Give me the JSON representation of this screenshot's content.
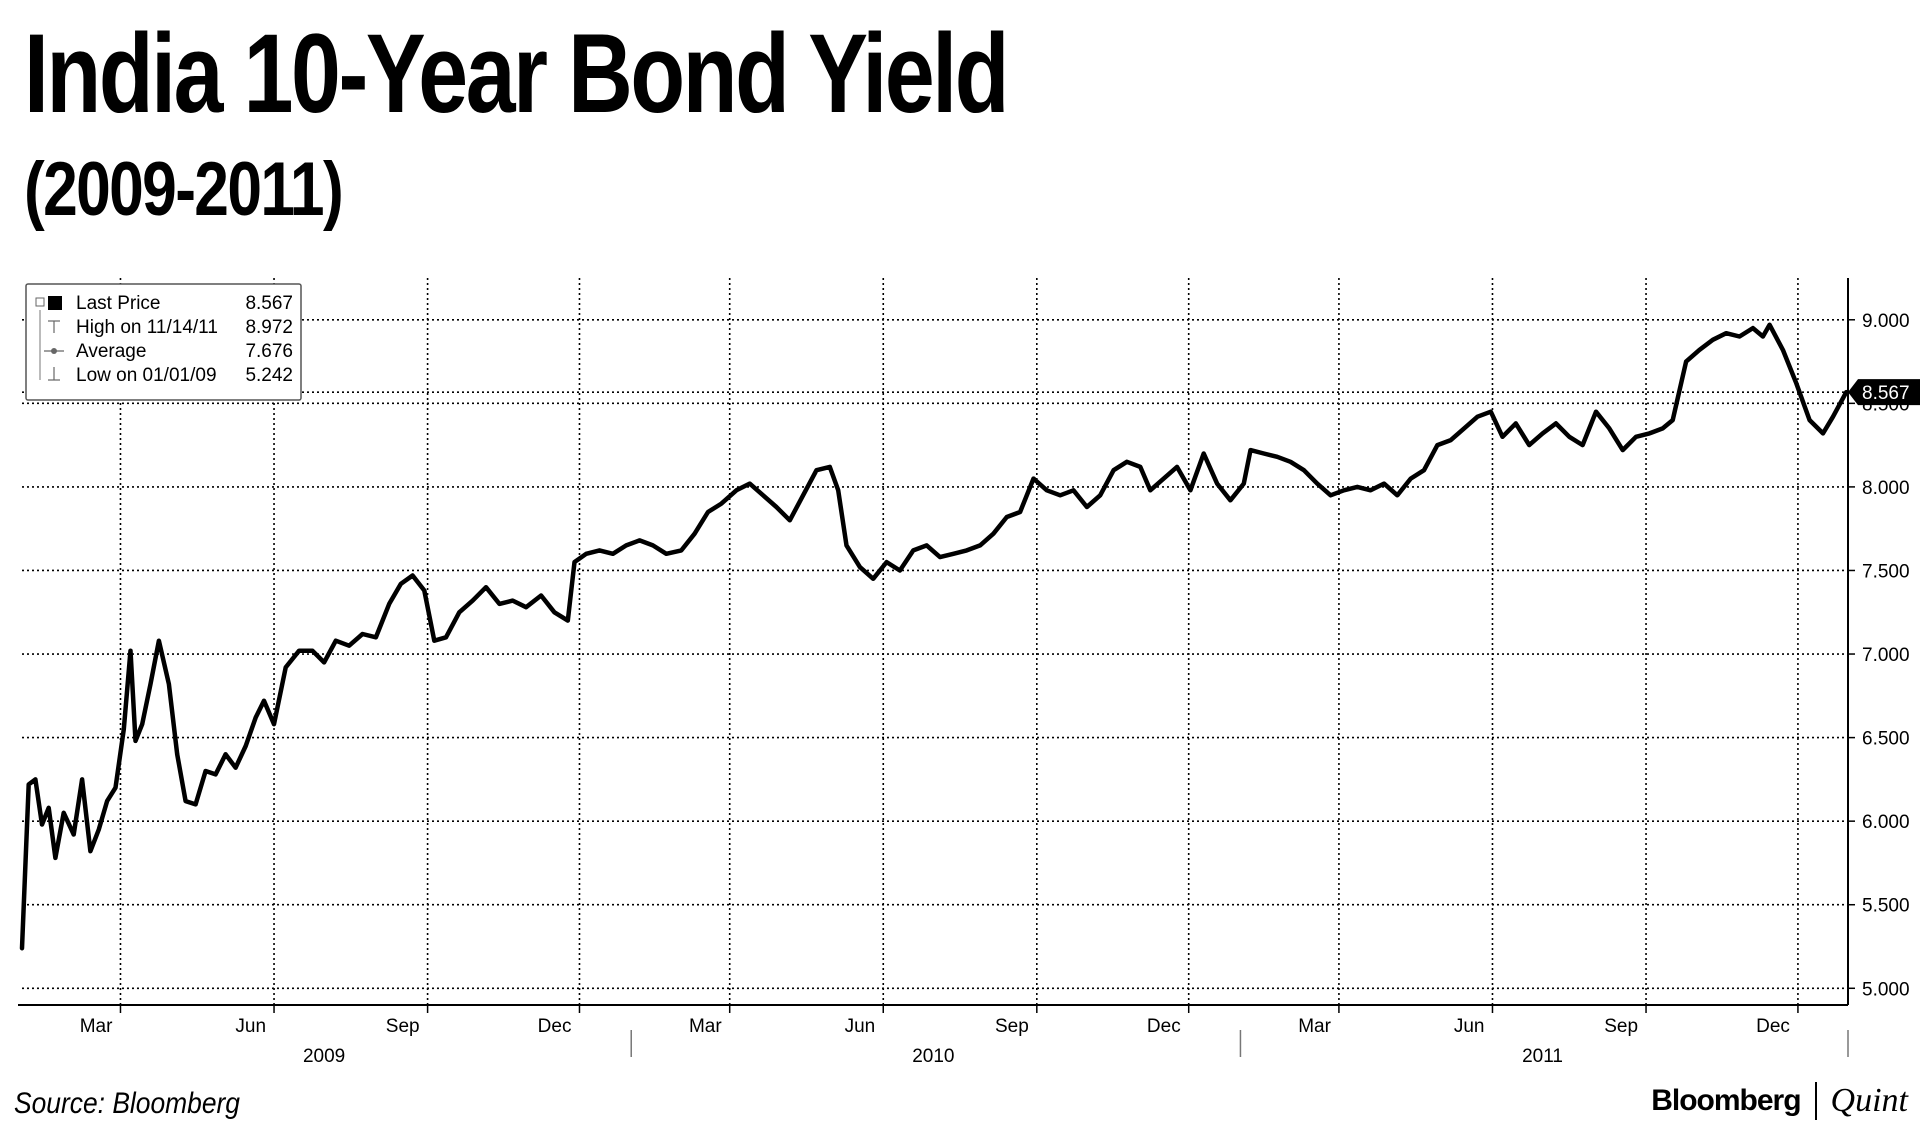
{
  "title": "India 10-Year Bond Yield",
  "subtitle": "(2009-2011)",
  "source": "Source: Bloomberg",
  "brand": {
    "left": "Bloomberg",
    "right": "Quint"
  },
  "colors": {
    "line": "#000000",
    "grid": "#000000",
    "background": "#ffffff",
    "last_price_tag": "#000000"
  },
  "chart_data": {
    "type": "line",
    "title": "India 10-Year Bond Yield",
    "subtitle": "(2009-2011)",
    "xlabel": "",
    "ylabel": "",
    "x_range": [
      "2009-01-01",
      "2011-12-31"
    ],
    "ylim": [
      4.9,
      9.25
    ],
    "y_ticks": [
      "5.000",
      "5.500",
      "6.000",
      "6.500",
      "7.000",
      "7.500",
      "8.000",
      "8.500",
      "9.000"
    ],
    "x_ticks": [
      {
        "label": "Mar",
        "date": "2009-03-01"
      },
      {
        "label": "Jun",
        "date": "2009-06-01"
      },
      {
        "label": "Sep",
        "date": "2009-09-01"
      },
      {
        "label": "Dec",
        "date": "2009-12-01"
      },
      {
        "label": "Mar",
        "date": "2010-03-01"
      },
      {
        "label": "Jun",
        "date": "2010-06-01"
      },
      {
        "label": "Sep",
        "date": "2010-09-01"
      },
      {
        "label": "Dec",
        "date": "2010-12-01"
      },
      {
        "label": "Mar",
        "date": "2011-03-01"
      },
      {
        "label": "Jun",
        "date": "2011-06-01"
      },
      {
        "label": "Sep",
        "date": "2011-09-01"
      },
      {
        "label": "Dec",
        "date": "2011-12-01"
      }
    ],
    "years": [
      {
        "label": "2009",
        "center": "2009-07-01"
      },
      {
        "label": "2010",
        "center": "2010-07-01"
      },
      {
        "label": "2011",
        "center": "2011-07-01"
      }
    ],
    "grid": true,
    "legend": {
      "placement": "top-left",
      "entries": [
        {
          "label": "Last Price",
          "value": "8.567"
        },
        {
          "label": "High on 11/14/11",
          "value": "8.972"
        },
        {
          "label": "Average",
          "value": "7.676"
        },
        {
          "label": "Low on 01/01/09",
          "value": "5.242"
        }
      ]
    },
    "last_price_tag": "8.567",
    "series": [
      {
        "values": [
          [
            "2009-01-01",
            5.24
          ],
          [
            "2009-01-05",
            6.22
          ],
          [
            "2009-01-09",
            6.25
          ],
          [
            "2009-01-13",
            5.98
          ],
          [
            "2009-01-17",
            6.08
          ],
          [
            "2009-01-21",
            5.78
          ],
          [
            "2009-01-26",
            6.05
          ],
          [
            "2009-02-01",
            5.92
          ],
          [
            "2009-02-06",
            6.25
          ],
          [
            "2009-02-11",
            5.82
          ],
          [
            "2009-02-16",
            5.95
          ],
          [
            "2009-02-21",
            6.12
          ],
          [
            "2009-02-26",
            6.2
          ],
          [
            "2009-03-03",
            6.55
          ],
          [
            "2009-03-07",
            7.02
          ],
          [
            "2009-03-10",
            6.48
          ],
          [
            "2009-03-14",
            6.58
          ],
          [
            "2009-03-19",
            6.82
          ],
          [
            "2009-03-24",
            7.08
          ],
          [
            "2009-03-30",
            6.82
          ],
          [
            "2009-04-04",
            6.4
          ],
          [
            "2009-04-09",
            6.12
          ],
          [
            "2009-04-15",
            6.1
          ],
          [
            "2009-04-21",
            6.3
          ],
          [
            "2009-04-27",
            6.28
          ],
          [
            "2009-05-03",
            6.4
          ],
          [
            "2009-05-09",
            6.32
          ],
          [
            "2009-05-15",
            6.45
          ],
          [
            "2009-05-21",
            6.62
          ],
          [
            "2009-05-26",
            6.72
          ],
          [
            "2009-06-01",
            6.58
          ],
          [
            "2009-06-08",
            6.92
          ],
          [
            "2009-06-16",
            7.02
          ],
          [
            "2009-06-24",
            7.02
          ],
          [
            "2009-07-01",
            6.95
          ],
          [
            "2009-07-08",
            7.08
          ],
          [
            "2009-07-16",
            7.05
          ],
          [
            "2009-07-24",
            7.12
          ],
          [
            "2009-08-01",
            7.1
          ],
          [
            "2009-08-09",
            7.3
          ],
          [
            "2009-08-16",
            7.42
          ],
          [
            "2009-08-23",
            7.47
          ],
          [
            "2009-08-30",
            7.38
          ],
          [
            "2009-09-05",
            7.08
          ],
          [
            "2009-09-12",
            7.1
          ],
          [
            "2009-09-20",
            7.25
          ],
          [
            "2009-09-28",
            7.32
          ],
          [
            "2009-10-06",
            7.4
          ],
          [
            "2009-10-14",
            7.3
          ],
          [
            "2009-10-22",
            7.32
          ],
          [
            "2009-10-30",
            7.28
          ],
          [
            "2009-11-08",
            7.35
          ],
          [
            "2009-11-16",
            7.25
          ],
          [
            "2009-11-24",
            7.2
          ],
          [
            "2009-11-28",
            7.55
          ],
          [
            "2009-12-05",
            7.6
          ],
          [
            "2009-12-13",
            7.62
          ],
          [
            "2009-12-21",
            7.6
          ],
          [
            "2009-12-29",
            7.65
          ],
          [
            "2010-01-06",
            7.68
          ],
          [
            "2010-01-14",
            7.65
          ],
          [
            "2010-01-22",
            7.6
          ],
          [
            "2010-01-31",
            7.62
          ],
          [
            "2010-02-08",
            7.72
          ],
          [
            "2010-02-16",
            7.85
          ],
          [
            "2010-02-24",
            7.9
          ],
          [
            "2010-03-05",
            7.98
          ],
          [
            "2010-03-13",
            8.02
          ],
          [
            "2010-03-21",
            7.95
          ],
          [
            "2010-03-29",
            7.88
          ],
          [
            "2010-04-06",
            7.8
          ],
          [
            "2010-04-14",
            7.95
          ],
          [
            "2010-04-22",
            8.1
          ],
          [
            "2010-04-30",
            8.12
          ],
          [
            "2010-05-05",
            7.98
          ],
          [
            "2010-05-10",
            7.65
          ],
          [
            "2010-05-18",
            7.52
          ],
          [
            "2010-05-26",
            7.45
          ],
          [
            "2010-06-03",
            7.55
          ],
          [
            "2010-06-11",
            7.5
          ],
          [
            "2010-06-19",
            7.62
          ],
          [
            "2010-06-27",
            7.65
          ],
          [
            "2010-07-05",
            7.58
          ],
          [
            "2010-07-13",
            7.6
          ],
          [
            "2010-07-21",
            7.62
          ],
          [
            "2010-07-29",
            7.65
          ],
          [
            "2010-08-06",
            7.72
          ],
          [
            "2010-08-14",
            7.82
          ],
          [
            "2010-08-22",
            7.85
          ],
          [
            "2010-08-30",
            8.05
          ],
          [
            "2010-09-07",
            7.98
          ],
          [
            "2010-09-15",
            7.95
          ],
          [
            "2010-09-23",
            7.98
          ],
          [
            "2010-10-01",
            7.88
          ],
          [
            "2010-10-09",
            7.95
          ],
          [
            "2010-10-17",
            8.1
          ],
          [
            "2010-10-25",
            8.15
          ],
          [
            "2010-11-02",
            8.12
          ],
          [
            "2010-11-08",
            7.98
          ],
          [
            "2010-11-16",
            8.05
          ],
          [
            "2010-11-24",
            8.12
          ],
          [
            "2010-12-02",
            7.98
          ],
          [
            "2010-12-10",
            8.2
          ],
          [
            "2010-12-18",
            8.02
          ],
          [
            "2010-12-26",
            7.92
          ],
          [
            "2011-01-03",
            8.02
          ],
          [
            "2011-01-07",
            8.22
          ],
          [
            "2011-01-15",
            8.2
          ],
          [
            "2011-01-23",
            8.18
          ],
          [
            "2011-01-31",
            8.15
          ],
          [
            "2011-02-08",
            8.1
          ],
          [
            "2011-02-16",
            8.02
          ],
          [
            "2011-02-24",
            7.95
          ],
          [
            "2011-03-04",
            7.98
          ],
          [
            "2011-03-12",
            8.0
          ],
          [
            "2011-03-20",
            7.98
          ],
          [
            "2011-03-28",
            8.02
          ],
          [
            "2011-04-05",
            7.95
          ],
          [
            "2011-04-13",
            8.05
          ],
          [
            "2011-04-21",
            8.1
          ],
          [
            "2011-04-29",
            8.25
          ],
          [
            "2011-05-07",
            8.28
          ],
          [
            "2011-05-15",
            8.35
          ],
          [
            "2011-05-23",
            8.42
          ],
          [
            "2011-05-31",
            8.45
          ],
          [
            "2011-06-07",
            8.3
          ],
          [
            "2011-06-15",
            8.38
          ],
          [
            "2011-06-23",
            8.25
          ],
          [
            "2011-07-01",
            8.32
          ],
          [
            "2011-07-09",
            8.38
          ],
          [
            "2011-07-17",
            8.3
          ],
          [
            "2011-07-25",
            8.25
          ],
          [
            "2011-08-02",
            8.45
          ],
          [
            "2011-08-10",
            8.35
          ],
          [
            "2011-08-18",
            8.22
          ],
          [
            "2011-08-26",
            8.3
          ],
          [
            "2011-09-03",
            8.32
          ],
          [
            "2011-09-11",
            8.35
          ],
          [
            "2011-09-17",
            8.4
          ],
          [
            "2011-09-25",
            8.75
          ],
          [
            "2011-10-03",
            8.82
          ],
          [
            "2011-10-11",
            8.88
          ],
          [
            "2011-10-19",
            8.92
          ],
          [
            "2011-10-27",
            8.9
          ],
          [
            "2011-11-04",
            8.95
          ],
          [
            "2011-11-10",
            8.9
          ],
          [
            "2011-11-14",
            8.97
          ],
          [
            "2011-11-22",
            8.82
          ],
          [
            "2011-11-30",
            8.62
          ],
          [
            "2011-12-08",
            8.4
          ],
          [
            "2011-12-16",
            8.32
          ],
          [
            "2011-12-22",
            8.42
          ],
          [
            "2011-12-30",
            8.567
          ]
        ]
      }
    ]
  }
}
